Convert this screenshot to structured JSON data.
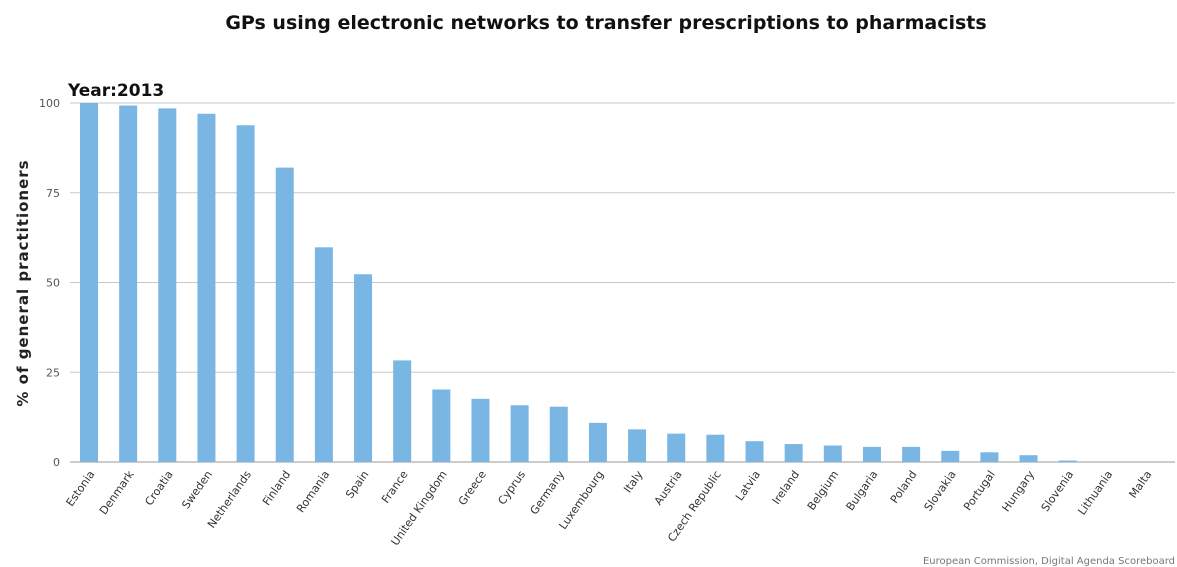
{
  "chart_data": {
    "type": "bar",
    "title": "GPs using electronic networks to transfer prescriptions to pharmacists",
    "year_label": "Year:2013",
    "ylabel": "% of general practitioners",
    "xlabel": "",
    "ylim": [
      0,
      100
    ],
    "yticks": [
      0,
      25,
      50,
      75,
      100
    ],
    "grid": true,
    "legend": "none",
    "bar_color": "#7ab6e4",
    "categories": [
      "Estonia",
      "Denmark",
      "Croatia",
      "Sweden",
      "Netherlands",
      "Finland",
      "Romania",
      "Spain",
      "France",
      "United Kingdom",
      "Greece",
      "Cyprus",
      "Germany",
      "Luxembourg",
      "Italy",
      "Austria",
      "Czech Republic",
      "Latvia",
      "Ireland",
      "Belgium",
      "Bulgaria",
      "Poland",
      "Slovakia",
      "Portugal",
      "Hungary",
      "Slovenia",
      "Lithuania",
      "Malta"
    ],
    "values": [
      100,
      99.3,
      98.5,
      97,
      93.8,
      82,
      59.8,
      52.3,
      28.3,
      20.2,
      17.6,
      15.8,
      15.4,
      10.9,
      9.1,
      7.9,
      7.6,
      5.8,
      5.0,
      4.6,
      4.2,
      4.2,
      3.1,
      2.7,
      1.9,
      0.4,
      0,
      0
    ],
    "source": "European Commission, Digital Agenda Scoreboard"
  }
}
